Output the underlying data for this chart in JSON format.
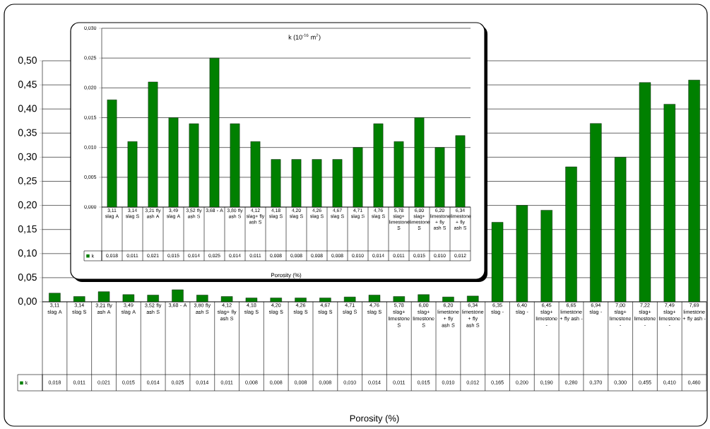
{
  "chart_data": [
    {
      "type": "bar",
      "xlabel": "Porosity (%)",
      "categories": [
        "3,11 slag A",
        "3,14 slag S",
        "3,21 fly ash A",
        "3,49 slag A",
        "3,52 fly ash S",
        "3,68 - A",
        "3,80 fly ash S",
        "4,12 slag+ fly ash S",
        "4,18 slag S",
        "4,20 slag S",
        "4,26 slag S",
        "4,67 slag S",
        "4,71 slag S",
        "4,76 slag S",
        "5,78 slag+ limestone S",
        "6,00 slag+ limestone S",
        "6,20 limestone + fly ash S",
        "6,34 limestone + fly ash S",
        "6,35 slag -",
        "6,40 slag -",
        "6,45 slag+ limestone -",
        "6,65 limestone + fly ash -",
        "6,94 slag -",
        "7,00 slag+ limestone -",
        "7,22 slag+ limestone -",
        "7,49 slag+ limestone -",
        "7,69 limestone + fly ash -"
      ],
      "series": [
        {
          "name": "k",
          "color": "#008000",
          "values": [
            0.018,
            0.011,
            0.021,
            0.015,
            0.014,
            0.025,
            0.014,
            0.011,
            0.008,
            0.008,
            0.008,
            0.008,
            0.01,
            0.014,
            0.011,
            0.015,
            0.01,
            0.012,
            0.165,
            0.2,
            0.19,
            0.28,
            0.37,
            0.3,
            0.455,
            0.41,
            0.46
          ],
          "value_labels": [
            "0,018",
            "0,011",
            "0,021",
            "0,015",
            "0,014",
            "0,025",
            "0,014",
            "0,011",
            "0,008",
            "0,008",
            "0,008",
            "0,008",
            "0,010",
            "0,014",
            "0,011",
            "0,015",
            "0,010",
            "0,012",
            "0,165",
            "0,200",
            "0,190",
            "0,280",
            "0,370",
            "0,300",
            "0,455",
            "0,410",
            "0,460"
          ]
        }
      ],
      "ylim": [
        0,
        0.5
      ],
      "yticks": [
        {
          "value": 0,
          "label": "0,00"
        },
        {
          "value": 0.05,
          "label": "0,05"
        },
        {
          "value": 0.1,
          "label": "0,10"
        },
        {
          "value": 0.15,
          "label": "0,15"
        },
        {
          "value": 0.2,
          "label": "0,20"
        },
        {
          "value": 0.25,
          "label": "0,25"
        },
        {
          "value": 0.3,
          "label": "0,30"
        },
        {
          "value": 0.35,
          "label": "0,35"
        },
        {
          "value": 0.4,
          "label": "0,40"
        },
        {
          "value": 0.45,
          "label": "0,45"
        },
        {
          "value": 0.5,
          "label": "0,50"
        }
      ],
      "grid": "y",
      "legend": "left"
    },
    {
      "type": "bar",
      "title": "k (10$^{-16}$ m$^{2}$)",
      "xlabel": "Porosity (%)",
      "categories": [
        "3,11 slag A",
        "3,14 slag S",
        "3,21 fly ash A",
        "3,49 slag A",
        "3,52 fly ash S",
        "3,68 - A",
        "3,80 fly ash S",
        "4,12 slag+ fly ash S",
        "4,18 slag S",
        "4,20 slag S",
        "4,26 slag S",
        "4,67 slag S",
        "4,71 slag S",
        "4,76 slag S",
        "5,78 slag+ limestone S",
        "6,00 slag+ limestone S",
        "6,20 limestone + fly ash S",
        "6,34 limestone + fly ash S"
      ],
      "series": [
        {
          "name": "k",
          "color": "#008000",
          "values": [
            0.018,
            0.011,
            0.021,
            0.015,
            0.014,
            0.025,
            0.014,
            0.011,
            0.008,
            0.008,
            0.008,
            0.008,
            0.01,
            0.014,
            0.011,
            0.015,
            0.01,
            0.012
          ],
          "value_labels": [
            "0,018",
            "0,011",
            "0,021",
            "0,015",
            "0,014",
            "0,025",
            "0,014",
            "0,011",
            "0,008",
            "0,008",
            "0,008",
            "0,008",
            "0,010",
            "0,014",
            "0,011",
            "0,015",
            "0,010",
            "0,012"
          ]
        }
      ],
      "ylim": [
        0,
        0.03
      ],
      "yticks": [
        {
          "value": 0,
          "label": "0,000"
        },
        {
          "value": 0.005,
          "label": "0,005"
        },
        {
          "value": 0.01,
          "label": "0,010"
        },
        {
          "value": 0.015,
          "label": "0,015"
        },
        {
          "value": 0.02,
          "label": "0,020"
        },
        {
          "value": 0.025,
          "label": "0,025"
        },
        {
          "value": 0.03,
          "label": "0,030"
        }
      ],
      "grid": "y",
      "legend": "left"
    }
  ]
}
